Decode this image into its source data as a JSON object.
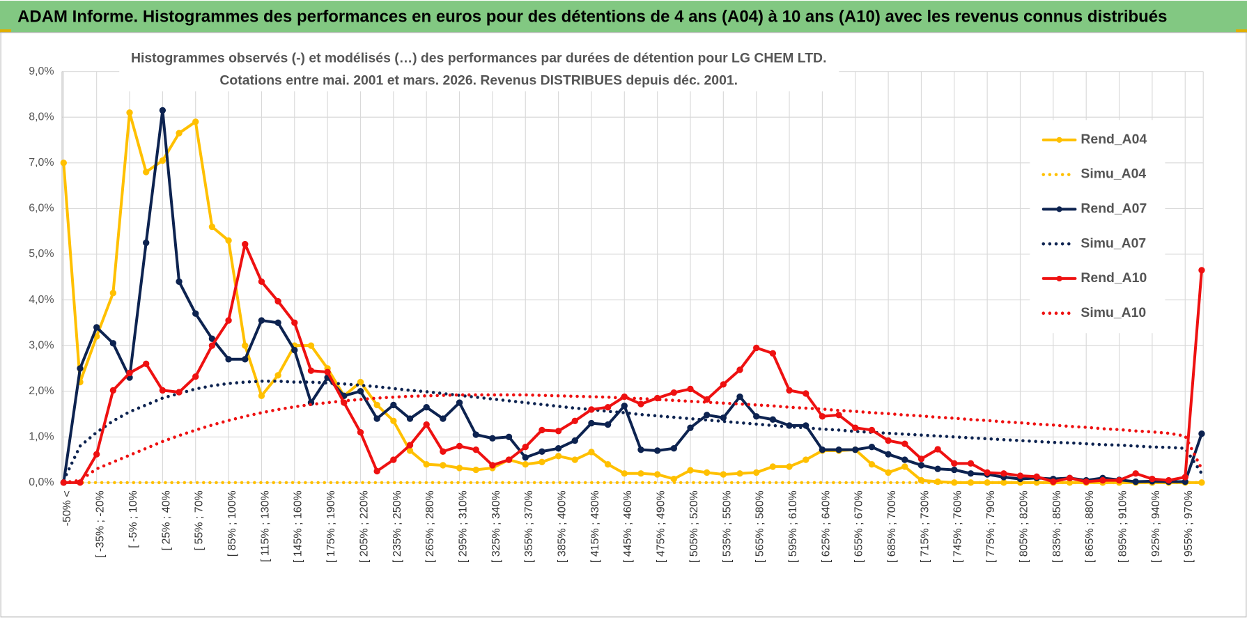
{
  "chart_data": {
    "type": "line",
    "title": "ADAM Informe. Histogrammes des performances en euros pour des détentions de 4 ans (A04) à 10 ans (A10) avec les revenus connus distribués",
    "subtitle": [
      "Histogrammes observés (-) et modélisés (…) des performances par durées de détention pour LG CHEM LTD.",
      "Cotations entre mai. 2001 et mars. 2026. Revenus DISTRIBUES depuis déc. 2001."
    ],
    "categories": [
      "-50% <",
      null,
      "[ -35% ; -20%",
      null,
      "[ -5% ; 10%",
      null,
      "[ 25% ; 40%",
      null,
      "[ 55% ; 70%",
      null,
      "[ 85% ; 100%",
      null,
      "[ 115% ; 130%",
      null,
      "[ 145% ; 160%",
      null,
      "[ 175% ; 190%",
      null,
      "[ 205% ; 220%",
      null,
      "[ 235% ; 250%",
      null,
      "[ 265% ; 280%",
      null,
      "[ 295% ; 310%",
      null,
      "[ 325% ; 340%",
      null,
      "[ 355% ; 370%",
      null,
      "[ 385% ; 400%",
      null,
      "[ 415% ; 430%",
      null,
      "[ 445% ; 460%",
      null,
      "[ 475% ; 490%",
      null,
      "[ 505% ; 520%",
      null,
      "[ 535% ; 550%",
      null,
      "[ 565% ; 580%",
      null,
      "[ 595% ; 610%",
      null,
      "[ 625% ; 640%",
      null,
      "[ 655% ; 670%",
      null,
      "[ 685% ; 700%",
      null,
      "[ 715% ; 730%",
      null,
      "[ 745% ; 760%",
      null,
      "[ 775% ; 790%",
      null,
      "[ 805% ; 820%",
      null,
      "[ 835% ; 850%",
      null,
      "[ 865% ; 880%",
      null,
      "[ 895% ; 910%",
      null,
      "[ 925% ; 940%",
      null,
      "[ 955% ; 970%",
      null
    ],
    "series": [
      {
        "name": "Rend_A04",
        "color": "#ffc000",
        "style": "solid",
        "values": [
          7.0,
          2.2,
          3.2,
          4.15,
          8.1,
          6.8,
          7.05,
          7.65,
          7.9,
          5.6,
          5.3,
          3.0,
          1.9,
          2.35,
          3.0,
          3.0,
          2.5,
          1.9,
          2.2,
          1.7,
          1.35,
          0.7,
          0.4,
          0.38,
          0.32,
          0.28,
          0.32,
          0.5,
          0.4,
          0.45,
          0.58,
          0.5,
          0.67,
          0.4,
          0.2,
          0.2,
          0.18,
          0.08,
          0.27,
          0.22,
          0.18,
          0.2,
          0.22,
          0.35,
          0.35,
          0.5,
          0.7,
          0.7,
          0.72,
          0.4,
          0.22,
          0.35,
          0.05,
          0.02,
          0,
          0,
          0,
          0,
          0,
          0,
          0,
          0,
          0,
          0,
          0,
          0,
          0,
          0,
          0,
          0
        ]
      },
      {
        "name": "Simu_A04",
        "color": "#ffc000",
        "style": "dotted",
        "values": [
          0,
          0,
          0,
          0,
          0,
          0,
          0,
          0,
          0,
          0,
          0,
          0,
          0,
          0,
          0,
          0,
          0,
          0,
          0,
          0,
          0,
          0,
          0,
          0,
          0,
          0,
          0,
          0,
          0,
          0,
          0,
          0,
          0,
          0,
          0,
          0,
          0,
          0,
          0,
          0,
          0,
          0,
          0,
          0,
          0,
          0,
          0,
          0,
          0,
          0,
          0,
          0,
          0,
          0,
          0,
          0,
          0,
          0,
          0,
          0,
          0,
          0,
          0,
          0,
          0,
          0,
          0,
          0,
          0,
          0
        ]
      },
      {
        "name": "Rend_A07",
        "color": "#0d2350",
        "style": "solid",
        "values": [
          0,
          2.5,
          3.4,
          3.05,
          2.3,
          5.25,
          8.15,
          4.4,
          3.7,
          3.15,
          2.7,
          2.7,
          3.55,
          3.5,
          2.9,
          1.75,
          2.3,
          1.9,
          2.0,
          1.4,
          1.7,
          1.4,
          1.65,
          1.4,
          1.75,
          1.05,
          0.97,
          1.0,
          0.55,
          0.68,
          0.75,
          0.92,
          1.3,
          1.27,
          1.68,
          0.72,
          0.7,
          0.75,
          1.2,
          1.48,
          1.42,
          1.88,
          1.45,
          1.38,
          1.25,
          1.25,
          0.72,
          0.72,
          0.72,
          0.78,
          0.62,
          0.5,
          0.38,
          0.3,
          0.28,
          0.2,
          0.18,
          0.12,
          0.08,
          0.1,
          0.08,
          0.1,
          0.05,
          0.1,
          0.06,
          0.02,
          0.03,
          0.02,
          0.02,
          1.07
        ]
      },
      {
        "name": "Simu_A07",
        "color": "#0d2350",
        "style": "dotted",
        "values": [
          0.05,
          0.8,
          1.1,
          1.35,
          1.55,
          1.7,
          1.85,
          1.95,
          2.05,
          2.12,
          2.17,
          2.2,
          2.22,
          2.22,
          2.2,
          2.2,
          2.18,
          2.16,
          2.13,
          2.1,
          2.06,
          2.02,
          1.99,
          1.95,
          1.91,
          1.87,
          1.83,
          1.79,
          1.75,
          1.71,
          1.67,
          1.63,
          1.6,
          1.56,
          1.53,
          1.49,
          1.46,
          1.43,
          1.4,
          1.37,
          1.34,
          1.31,
          1.28,
          1.25,
          1.22,
          1.2,
          1.17,
          1.15,
          1.12,
          1.1,
          1.08,
          1.06,
          1.04,
          1.02,
          1.0,
          0.98,
          0.96,
          0.94,
          0.92,
          0.9,
          0.88,
          0.87,
          0.85,
          0.83,
          0.82,
          0.8,
          0.78,
          0.77,
          0.75,
          0.2
        ]
      },
      {
        "name": "Rend_A10",
        "color": "#ee1111",
        "style": "solid",
        "values": [
          0,
          0,
          0.62,
          2.02,
          2.4,
          2.6,
          2.02,
          1.98,
          2.32,
          3.0,
          3.55,
          5.22,
          4.4,
          3.97,
          3.5,
          2.45,
          2.42,
          1.75,
          1.1,
          0.25,
          0.5,
          0.82,
          1.27,
          0.68,
          0.8,
          0.72,
          0.38,
          0.5,
          0.78,
          1.15,
          1.13,
          1.35,
          1.6,
          1.65,
          1.88,
          1.72,
          1.85,
          1.97,
          2.05,
          1.82,
          2.15,
          2.47,
          2.95,
          2.83,
          2.02,
          1.95,
          1.45,
          1.48,
          1.2,
          1.15,
          0.92,
          0.85,
          0.52,
          0.73,
          0.42,
          0.42,
          0.22,
          0.2,
          0.15,
          0.13,
          0.02,
          0.1,
          0.02,
          0.05,
          0.05,
          0.2,
          0.08,
          0.05,
          0.12,
          4.65
        ]
      },
      {
        "name": "Simu_A10",
        "color": "#ee1111",
        "style": "dotted",
        "values": [
          0,
          0.05,
          0.3,
          0.45,
          0.6,
          0.75,
          0.9,
          1.03,
          1.15,
          1.26,
          1.36,
          1.45,
          1.53,
          1.6,
          1.66,
          1.71,
          1.75,
          1.79,
          1.82,
          1.85,
          1.87,
          1.89,
          1.9,
          1.91,
          1.92,
          1.92,
          1.92,
          1.92,
          1.92,
          1.91,
          1.9,
          1.89,
          1.88,
          1.87,
          1.85,
          1.84,
          1.82,
          1.8,
          1.78,
          1.76,
          1.74,
          1.72,
          1.7,
          1.68,
          1.65,
          1.63,
          1.61,
          1.58,
          1.56,
          1.53,
          1.51,
          1.48,
          1.46,
          1.43,
          1.41,
          1.38,
          1.36,
          1.33,
          1.31,
          1.28,
          1.26,
          1.23,
          1.21,
          1.18,
          1.16,
          1.13,
          1.11,
          1.08,
          1.02,
          0.3
        ]
      }
    ],
    "ylim": [
      0,
      9
    ],
    "yticks": [
      {
        "value": 0,
        "label": "0,0%"
      },
      {
        "value": 1,
        "label": "1,0%"
      },
      {
        "value": 2,
        "label": "2,0%"
      },
      {
        "value": 3,
        "label": "3,0%"
      },
      {
        "value": 4,
        "label": "4,0%"
      },
      {
        "value": 5,
        "label": "5,0%"
      },
      {
        "value": 6,
        "label": "6,0%"
      },
      {
        "value": 7,
        "label": "7,0%"
      },
      {
        "value": 8,
        "label": "8,0%"
      },
      {
        "value": 9,
        "label": "9,0%"
      }
    ],
    "grid": true,
    "legend": "right"
  }
}
